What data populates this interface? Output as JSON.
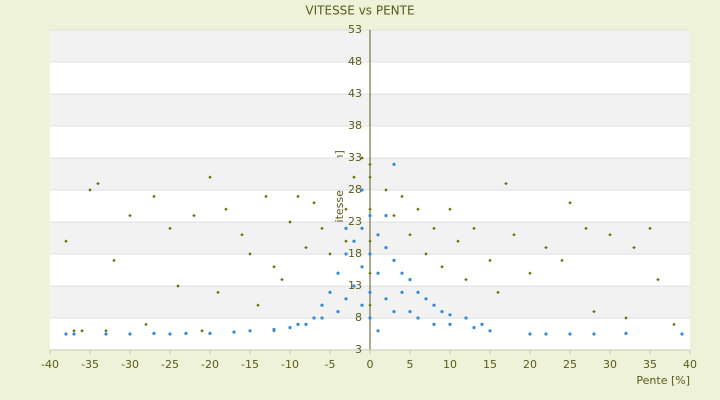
{
  "chart_data": {
    "type": "scatter",
    "title": "VITESSE vs PENTE",
    "x_label": "Pente [%]",
    "y_label": "Vitesse [km/h]",
    "xlim": [
      -40,
      40
    ],
    "xticks": [
      -40,
      -35,
      -30,
      -25,
      -20,
      -15,
      -10,
      -5,
      0,
      5,
      10,
      15,
      20,
      25,
      30,
      35,
      40
    ],
    "ylim": [
      3,
      53
    ],
    "yticks": [
      3,
      8,
      13,
      18,
      23,
      28,
      33,
      38,
      43,
      48,
      53
    ],
    "grid": true,
    "series": [
      {
        "color": "#6b6b00",
        "x": [
          -35,
          -34,
          -30,
          -27,
          -25,
          -22,
          -20,
          -18,
          -16,
          -15,
          -13,
          -12,
          -10,
          -9,
          -8,
          -7,
          -6,
          -5,
          -4,
          -3,
          -2,
          -1,
          0,
          0,
          0,
          0,
          0,
          0,
          2,
          3,
          4,
          5,
          6,
          7,
          8,
          9,
          10,
          11,
          12,
          13,
          15,
          16,
          17,
          18,
          20,
          22,
          24,
          25,
          27,
          28,
          30,
          32,
          33,
          35,
          36,
          38,
          -38,
          -36,
          -32,
          -28,
          -24,
          -19,
          -14,
          -11,
          -6,
          -3,
          -37,
          -33,
          -21,
          -12
        ],
        "values": [
          28,
          29,
          24,
          27,
          22,
          24,
          30,
          25,
          21,
          18,
          27,
          16,
          23,
          27,
          19,
          26,
          22,
          18,
          15,
          25,
          30,
          33,
          10,
          15,
          20,
          25,
          30,
          32,
          28,
          24,
          27,
          21,
          25,
          18,
          22,
          16,
          25,
          20,
          14,
          22,
          17,
          12,
          29,
          21,
          15,
          19,
          17,
          26,
          22,
          9,
          21,
          8,
          19,
          22,
          14,
          7,
          20,
          6,
          17,
          7,
          13,
          12,
          10,
          14,
          10,
          20,
          6,
          6,
          6,
          6
        ]
      },
      {
        "color": "#3a8ad6",
        "x": [
          -38,
          -37,
          -33,
          -30,
          -27,
          -25,
          -23,
          -20,
          -17,
          -15,
          -12,
          -10,
          -8,
          -6,
          -4,
          20,
          22,
          25,
          28,
          32,
          39,
          15,
          13,
          10,
          -5,
          -4,
          -3,
          -2,
          -1,
          0,
          0,
          0,
          0,
          1,
          1,
          2,
          2,
          3,
          3,
          4,
          4,
          5,
          5,
          6,
          6,
          7,
          8,
          8,
          9,
          10,
          12,
          14,
          -1,
          -2,
          -3,
          -6,
          -7,
          -9,
          -1,
          1,
          3,
          -1,
          2,
          -3
        ],
        "values": [
          5.5,
          5.5,
          5.5,
          5.5,
          5.6,
          5.5,
          5.6,
          5.6,
          5.8,
          6,
          6.2,
          6.5,
          7,
          8,
          9,
          5.5,
          5.5,
          5.5,
          5.5,
          5.6,
          5.5,
          6,
          6.5,
          7,
          12,
          15,
          18,
          20,
          22,
          24,
          18,
          12,
          8,
          21,
          15,
          19,
          11,
          17,
          9,
          15,
          12,
          14,
          9,
          12,
          8,
          11,
          10,
          7,
          9,
          8.5,
          8,
          7,
          16,
          13,
          11,
          10,
          8,
          7,
          10,
          6,
          32,
          28,
          24,
          22
        ]
      }
    ]
  }
}
